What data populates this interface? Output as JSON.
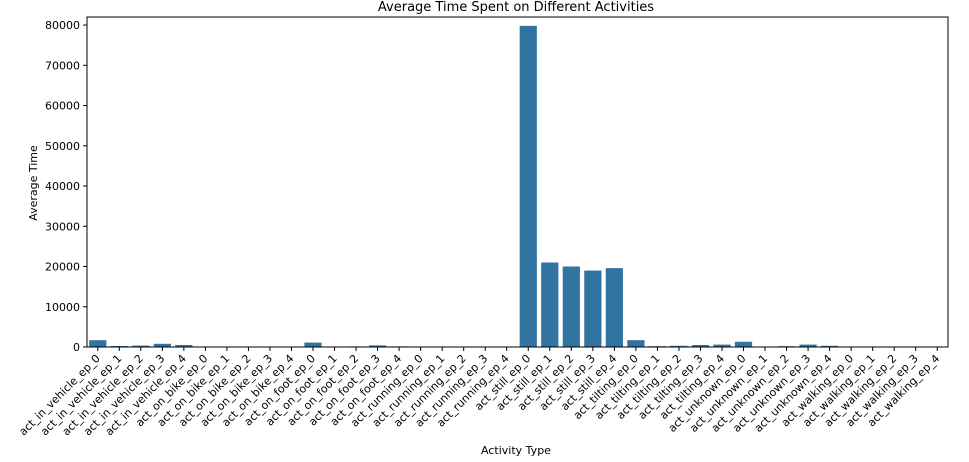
{
  "chart_data": {
    "type": "bar",
    "title": "Average Time Spent on Different Activities",
    "xlabel": "Activity Type",
    "ylabel": "Average Time",
    "ylim": [
      0,
      82000
    ],
    "yticks": [
      0,
      10000,
      20000,
      30000,
      40000,
      50000,
      60000,
      70000,
      80000
    ],
    "grid": false,
    "bar_color": "#3274a1",
    "categories": [
      "act_in_vehicle_ep_0",
      "act_in_vehicle_ep_1",
      "act_in_vehicle_ep_2",
      "act_in_vehicle_ep_3",
      "act_in_vehicle_ep_4",
      "act_on_bike_ep_0",
      "act_on_bike_ep_1",
      "act_on_bike_ep_2",
      "act_on_bike_ep_3",
      "act_on_bike_ep_4",
      "act_on_foot_ep_0",
      "act_on_foot_ep_1",
      "act_on_foot_ep_2",
      "act_on_foot_ep_3",
      "act_on_foot_ep_4",
      "act_running_ep_0",
      "act_running_ep_1",
      "act_running_ep_2",
      "act_running_ep_3",
      "act_running_ep_4",
      "act_still_ep_0",
      "act_still_ep_1",
      "act_still_ep_2",
      "act_still_ep_3",
      "act_still_ep_4",
      "act_tilting_ep_0",
      "act_tilting_ep_1",
      "act_tilting_ep_2",
      "act_tilting_ep_3",
      "act_tilting_ep_4",
      "act_unknown_ep_0",
      "act_unknown_ep_1",
      "act_unknown_ep_2",
      "act_unknown_ep_3",
      "act_unknown_ep_4",
      "act_walking_ep_0",
      "act_walking_ep_1",
      "act_walking_ep_2",
      "act_walking_ep_3",
      "act_walking_ep_4"
    ],
    "values": [
      1700,
      250,
      350,
      800,
      500,
      50,
      30,
      20,
      20,
      20,
      1100,
      30,
      150,
      400,
      150,
      20,
      20,
      20,
      20,
      20,
      79800,
      21000,
      20000,
      19000,
      19600,
      1700,
      200,
      300,
      500,
      600,
      1300,
      50,
      200,
      600,
      300,
      50,
      30,
      30,
      30,
      30
    ]
  }
}
